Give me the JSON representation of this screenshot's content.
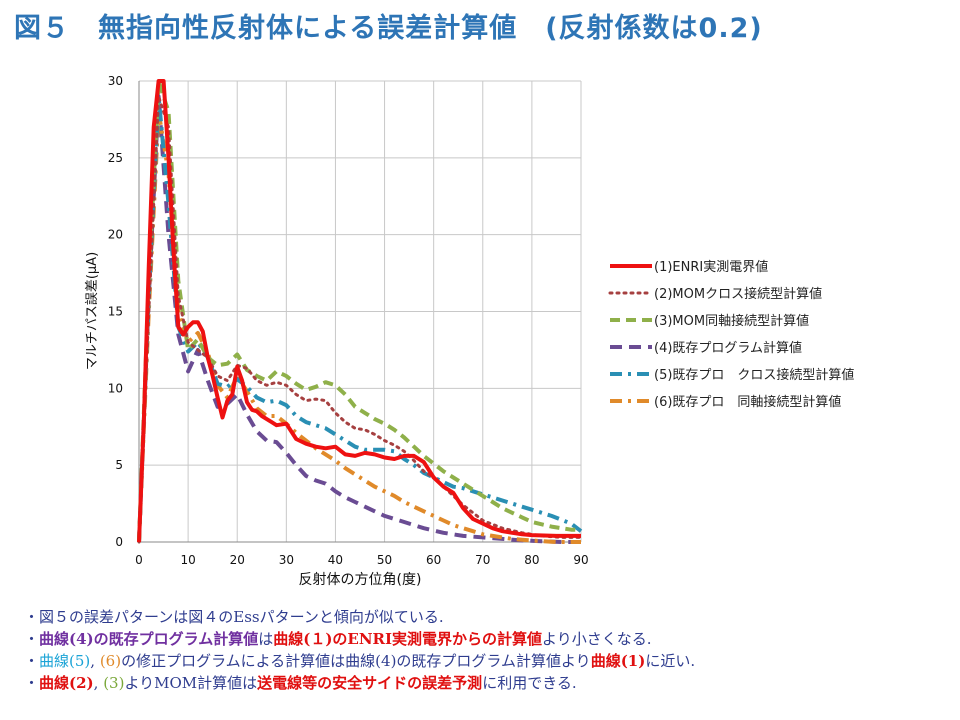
{
  "title": "図５　無指向性反射体による誤差計算値　(反射係数は0.2)",
  "chart_data": {
    "type": "line",
    "xlabel": "反射体の方位角(度)",
    "ylabel": "マルチパス誤差(μA)",
    "xlim": [
      0,
      90
    ],
    "ylim": [
      0,
      30
    ],
    "xticks": [
      "0",
      "10",
      "20",
      "30",
      "40",
      "50",
      "60",
      "70",
      "80",
      "90"
    ],
    "yticks": [
      "0",
      "5",
      "10",
      "15",
      "20",
      "25",
      "30"
    ],
    "grid": true,
    "legend_position": "right",
    "series": [
      {
        "name": "(1)ENRI実測電界値",
        "color": "#ee1111",
        "dash": "",
        "width": 4,
        "x": [
          0,
          1,
          2,
          3,
          4,
          5,
          6,
          7,
          8,
          9,
          10,
          11,
          12,
          13,
          14,
          15,
          16,
          17,
          18,
          19,
          20,
          21,
          22,
          23,
          24,
          25,
          26,
          27,
          28,
          30,
          32,
          34,
          36,
          38,
          40,
          42,
          44,
          46,
          48,
          50,
          52,
          54,
          56,
          58,
          60,
          62,
          64,
          66,
          68,
          70,
          72,
          74,
          76,
          78,
          80,
          85,
          90
        ],
        "y": [
          0,
          8,
          18,
          27,
          30,
          30,
          25,
          19,
          14,
          13.5,
          14,
          14.3,
          14.3,
          13.7,
          12,
          10.8,
          9.4,
          8.1,
          9.2,
          9.6,
          11.4,
          10.5,
          9.1,
          8.6,
          8.5,
          8.2,
          8.0,
          7.8,
          7.6,
          7.7,
          6.7,
          6.4,
          6.2,
          6.1,
          6.2,
          5.7,
          5.6,
          5.8,
          5.7,
          5.5,
          5.4,
          5.6,
          5.6,
          5.2,
          4.2,
          3.6,
          3.2,
          2.2,
          1.5,
          1.2,
          0.9,
          0.7,
          0.6,
          0.5,
          0.45,
          0.4,
          0.4
        ]
      },
      {
        "name": "(2)MOMクロス接続型計算値",
        "color": "#a64040",
        "dash": "2,5",
        "width": 3,
        "x": [
          0,
          2,
          4,
          6,
          8,
          10,
          12,
          14,
          16,
          18,
          20,
          22,
          24,
          26,
          28,
          30,
          32,
          34,
          36,
          38,
          40,
          42,
          44,
          46,
          48,
          50,
          52,
          54,
          56,
          58,
          60,
          62,
          64,
          66,
          68,
          70,
          74,
          78,
          82,
          86,
          90
        ],
        "y": [
          0,
          15,
          29,
          27,
          16,
          13,
          12.5,
          12,
          10.8,
          10.5,
          11.5,
          11.3,
          10.5,
          10.2,
          10.4,
          10.2,
          9.6,
          9.2,
          9.3,
          9.2,
          8.4,
          7.8,
          7.4,
          7.3,
          7.0,
          6.6,
          6.3,
          5.9,
          5.3,
          4.6,
          4.2,
          3.6,
          3.0,
          2.4,
          1.9,
          1.4,
          0.9,
          0.6,
          0.4,
          0.3,
          0.3
        ]
      },
      {
        "name": "(3)MOM同軸接続型計算値",
        "color": "#8fb04a",
        "dash": "10,6",
        "width": 4,
        "x": [
          0,
          2,
          4,
          6,
          8,
          10,
          12,
          14,
          16,
          18,
          20,
          22,
          24,
          26,
          28,
          30,
          32,
          34,
          36,
          38,
          40,
          42,
          44,
          46,
          48,
          50,
          52,
          54,
          56,
          58,
          60,
          62,
          64,
          66,
          68,
          70,
          72,
          74,
          76,
          78,
          80,
          84,
          88,
          90
        ],
        "y": [
          0,
          17,
          30,
          28,
          17,
          12.5,
          13.2,
          12,
          11.5,
          11.6,
          12.2,
          11.2,
          10.8,
          10.5,
          11.1,
          10.8,
          10.3,
          9.9,
          10.1,
          10.4,
          10.2,
          9.6,
          8.8,
          8.4,
          8.0,
          7.7,
          7.3,
          6.8,
          6.2,
          5.6,
          5.1,
          4.6,
          4.2,
          3.8,
          3.4,
          3.0,
          2.6,
          2.2,
          1.9,
          1.6,
          1.3,
          1.0,
          0.8,
          0.8
        ]
      },
      {
        "name": "(4)既存プログラム計算値",
        "color": "#6a4c93",
        "dash": "12,7",
        "width": 4,
        "x": [
          0,
          2,
          4,
          6,
          8,
          10,
          12,
          14,
          16,
          18,
          20,
          22,
          24,
          26,
          28,
          30,
          32,
          34,
          36,
          38,
          40,
          42,
          44,
          46,
          48,
          50,
          54,
          58,
          62,
          66,
          70,
          74,
          78,
          82,
          86,
          90
        ],
        "y": [
          0,
          16,
          29,
          20,
          13.5,
          11.1,
          12.5,
          10.5,
          8.8,
          9.0,
          9.6,
          8.3,
          7.2,
          6.6,
          6.5,
          5.8,
          5.0,
          4.3,
          4.0,
          3.8,
          3.3,
          2.9,
          2.6,
          2.3,
          2.0,
          1.7,
          1.3,
          0.9,
          0.6,
          0.4,
          0.3,
          0.2,
          0.1,
          0.05,
          0,
          0
        ]
      },
      {
        "name": "(5)既存プロ　クロス接続型計算値",
        "color": "#2a8fb4",
        "dash": "12,6,3,6",
        "width": 4,
        "x": [
          0,
          2,
          4,
          6,
          8,
          10,
          12,
          14,
          16,
          18,
          20,
          22,
          24,
          26,
          28,
          30,
          32,
          34,
          36,
          38,
          40,
          42,
          44,
          46,
          48,
          50,
          52,
          54,
          56,
          58,
          60,
          62,
          64,
          66,
          68,
          70,
          72,
          74,
          76,
          78,
          80,
          84,
          88,
          90
        ],
        "y": [
          0,
          16,
          29,
          22,
          14,
          12.4,
          13,
          12,
          10.3,
          10.1,
          10.6,
          10.1,
          9.4,
          9.1,
          9.2,
          8.9,
          8.2,
          7.8,
          7.6,
          7.4,
          7.0,
          6.6,
          6.2,
          6.0,
          6.0,
          6.0,
          5.9,
          5.4,
          5.0,
          4.5,
          4.2,
          3.9,
          3.6,
          3.5,
          3.3,
          3.1,
          2.9,
          2.7,
          2.5,
          2.3,
          2.1,
          1.7,
          1.2,
          0.7
        ]
      },
      {
        "name": "(6)既存プロ　同軸接続型計算値",
        "color": "#e08a2a",
        "dash": "12,6,3,6",
        "width": 4,
        "x": [
          0,
          2,
          4,
          6,
          8,
          10,
          12,
          14,
          16,
          18,
          20,
          22,
          24,
          26,
          28,
          30,
          32,
          34,
          36,
          38,
          40,
          42,
          44,
          46,
          48,
          50,
          52,
          54,
          56,
          58,
          60,
          62,
          64,
          66,
          68,
          70,
          72,
          74,
          76,
          78,
          80,
          85,
          90
        ],
        "y": [
          0,
          15,
          28,
          24,
          15,
          13,
          13.6,
          12.3,
          10.2,
          9.4,
          10.8,
          9.8,
          8.7,
          8.2,
          8.2,
          7.7,
          7.1,
          6.6,
          6.1,
          5.7,
          5.3,
          4.8,
          4.4,
          4.0,
          3.6,
          3.3,
          3.0,
          2.6,
          2.3,
          2.0,
          1.7,
          1.4,
          1.1,
          0.9,
          0.7,
          0.5,
          0.4,
          0.3,
          0.2,
          0.15,
          0.1,
          0,
          0
        ]
      }
    ]
  },
  "notes": [
    [
      {
        "t": "・図５の誤差パターンは図４のEssパターンと傾向が似ている.",
        "c": "c-navy"
      }
    ],
    [
      {
        "t": "・",
        "c": "c-navy"
      },
      {
        "t": "曲線(4)の既存プログラム計算値",
        "c": "c-purple"
      },
      {
        "t": "は",
        "c": "c-navy"
      },
      {
        "t": "曲線(１)のENRI実測電界からの計算値",
        "c": "c-red"
      },
      {
        "t": "より小さくなる.",
        "c": "c-navy"
      }
    ],
    [
      {
        "t": "・",
        "c": "c-navy"
      },
      {
        "t": "曲線(5)",
        "c": "c-cyan"
      },
      {
        "t": ",  ",
        "c": "c-navy"
      },
      {
        "t": "(6)",
        "c": "c-orange"
      },
      {
        "t": "の修正プログラムによる計算値は",
        "c": "c-navy"
      },
      {
        "t": "曲線(4)の既存プログラム計算値",
        "c": "c-navy"
      },
      {
        "t": "より",
        "c": "c-navy"
      },
      {
        "t": "曲線(1)",
        "c": "c-red"
      },
      {
        "t": "に近い.",
        "c": "c-navy"
      }
    ],
    [
      {
        "t": "・",
        "c": "c-navy"
      },
      {
        "t": "曲線(2)",
        "c": "c-red"
      },
      {
        "t": ",  ",
        "c": "c-navy"
      },
      {
        "t": "(3)",
        "c": "c-green"
      },
      {
        "t": "よりMOM計算値は",
        "c": "c-navy"
      },
      {
        "t": "送電線等の安全サイドの誤差予測",
        "c": "c-red"
      },
      {
        "t": "に利用できる.",
        "c": "c-navy"
      }
    ]
  ]
}
